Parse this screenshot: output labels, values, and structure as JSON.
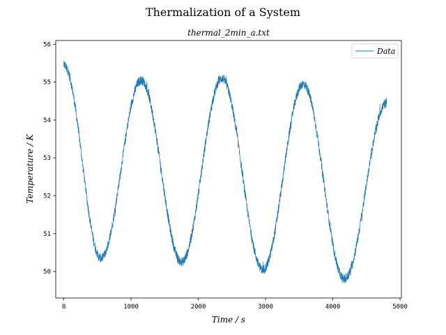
{
  "chart_data": {
    "type": "line",
    "suptitle": "Thermalization of a System",
    "title": "thermal_2min_a.txt",
    "xlabel": "Time / s",
    "ylabel": "Temperature / K",
    "xlim": [
      -120,
      5020
    ],
    "ylim": [
      49.3,
      56.1
    ],
    "xticks": [
      0,
      1000,
      2000,
      3000,
      4000,
      5000
    ],
    "xtick_labels": [
      "0",
      "1000",
      "2000",
      "3000",
      "4000",
      "5000"
    ],
    "yticks": [
      50,
      51,
      52,
      53,
      54,
      55,
      56
    ],
    "ytick_labels": [
      "50",
      "51",
      "52",
      "53",
      "54",
      "55",
      "56"
    ],
    "grid": false,
    "legend_position": "top-right",
    "series": [
      {
        "name": "Data",
        "color": "#1f77b4",
        "noise_amplitude": 0.12,
        "x_range": [
          0,
          4800
        ],
        "key_points": [
          {
            "x": 0,
            "y": 55.45
          },
          {
            "x": 550,
            "y": 50.35
          },
          {
            "x": 1150,
            "y": 55.05
          },
          {
            "x": 1750,
            "y": 50.25
          },
          {
            "x": 2350,
            "y": 55.1
          },
          {
            "x": 2960,
            "y": 50.05
          },
          {
            "x": 3560,
            "y": 54.95
          },
          {
            "x": 4170,
            "y": 49.8
          },
          {
            "x": 4800,
            "y": 54.45
          }
        ]
      }
    ]
  }
}
